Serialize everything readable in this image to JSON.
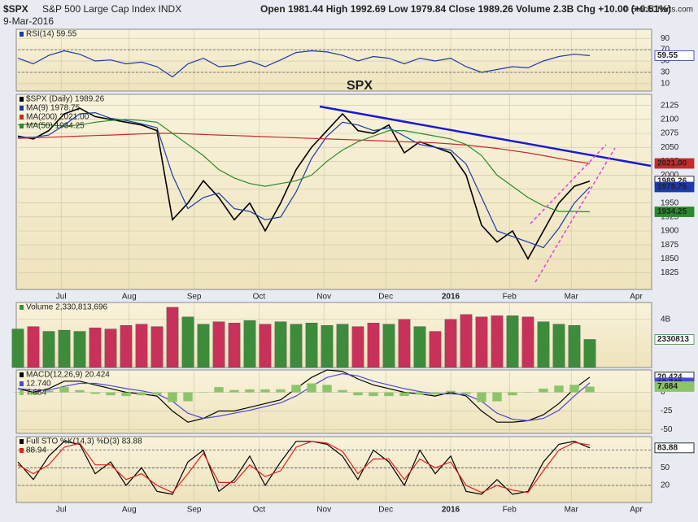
{
  "header": {
    "symbol": "$SPX",
    "name": "S&P 500 Large Cap Index INDX",
    "date": "9-Mar-2016",
    "ohlc": "Open 1981.44  High 1992.69  Low 1979.84  Close 1989.26  Volume 2.3B  Chg +10.00 (+0.51%)",
    "source": "© StockCharts.com"
  },
  "chart_data": [
    {
      "type": "line",
      "ylim": [
        -3,
        106
      ],
      "yticks": [
        10,
        30,
        50,
        70,
        90
      ],
      "levels": [
        30,
        70
      ],
      "x": [
        0,
        5,
        10,
        15,
        20,
        25,
        30,
        35,
        40,
        45,
        50,
        55,
        60,
        65,
        70,
        75,
        80,
        85,
        90,
        95,
        100,
        105,
        110,
        115,
        120,
        125,
        130,
        135,
        140,
        145,
        150,
        155,
        160,
        165,
        170,
        175,
        180,
        185
      ],
      "xlim": [
        0,
        205
      ],
      "series": [
        {
          "name": "RSI(14) 59.55",
          "color": "#1c3aa9",
          "tag": "59.55",
          "values": [
            55,
            45,
            60,
            68,
            62,
            50,
            52,
            45,
            48,
            40,
            22,
            45,
            55,
            40,
            42,
            50,
            40,
            52,
            65,
            68,
            66,
            60,
            50,
            58,
            55,
            45,
            55,
            50,
            55,
            40,
            30,
            35,
            40,
            38,
            50,
            58,
            62,
            59.55
          ]
        }
      ]
    },
    {
      "type": "line",
      "annotation": "SPX",
      "ylim": [
        1795,
        2145
      ],
      "yticks": [
        1825,
        1850,
        1875,
        1900,
        1925,
        1950,
        1975,
        2000,
        2025,
        2050,
        2075,
        2100,
        2125
      ],
      "x": [
        0,
        5,
        10,
        15,
        20,
        25,
        30,
        35,
        40,
        45,
        50,
        55,
        60,
        65,
        70,
        75,
        80,
        85,
        90,
        95,
        100,
        105,
        110,
        115,
        120,
        125,
        130,
        135,
        140,
        145,
        150,
        155,
        160,
        165,
        170,
        175,
        180,
        185
      ],
      "xlim": [
        0,
        205
      ],
      "xticks": [
        {
          "value": 14,
          "label": "Jul"
        },
        {
          "value": 36,
          "label": "Aug"
        },
        {
          "value": 57,
          "label": "Sep"
        },
        {
          "value": 78,
          "label": "Oct"
        },
        {
          "value": 99,
          "label": "Nov"
        },
        {
          "value": 119,
          "label": "Dec"
        },
        {
          "value": 140,
          "label": "2016"
        },
        {
          "value": 159,
          "label": "Feb"
        },
        {
          "value": 179,
          "label": "Mar"
        },
        {
          "value": 200,
          "label": "Apr"
        }
      ],
      "series": [
        {
          "name": "$SPX (Daily) 1989.26",
          "color": "#000000",
          "tag": "1989.26",
          "values": [
            2070,
            2065,
            2080,
            2110,
            2120,
            2105,
            2100,
            2095,
            2090,
            2080,
            1920,
            1950,
            1990,
            1960,
            1920,
            1950,
            1900,
            1950,
            2010,
            2050,
            2080,
            2110,
            2080,
            2075,
            2090,
            2040,
            2060,
            2050,
            2040,
            2000,
            1910,
            1880,
            1900,
            1850,
            1900,
            1950,
            1980,
            1989.26
          ]
        },
        {
          "name": "MA(9) 1978.75",
          "color": "#1c3aa9",
          "tag": "1978.75",
          "values": [
            2068,
            2068,
            2072,
            2090,
            2110,
            2112,
            2102,
            2098,
            2092,
            2085,
            2000,
            1940,
            1960,
            1968,
            1940,
            1935,
            1920,
            1925,
            1970,
            2030,
            2070,
            2095,
            2090,
            2080,
            2085,
            2070,
            2055,
            2050,
            2045,
            2020,
            1960,
            1900,
            1890,
            1880,
            1870,
            1905,
            1950,
            1978.75
          ]
        },
        {
          "name": "MA(200) 2021.00",
          "color": "#c82a2a",
          "tag": "2021.00",
          "values": [
            2066,
            2067,
            2068,
            2069,
            2070,
            2071,
            2072,
            2073,
            2074,
            2075,
            2075,
            2074,
            2073,
            2072,
            2071,
            2070,
            2069,
            2068,
            2067,
            2066,
            2065,
            2064,
            2063,
            2062,
            2061,
            2060,
            2059,
            2058,
            2056,
            2054,
            2051,
            2048,
            2044,
            2040,
            2035,
            2030,
            2025,
            2021
          ]
        },
        {
          "name": "MA(50) 1934.25",
          "color": "#2a8a2a",
          "tag": "1934.25",
          "values": [
            2090,
            2092,
            2090,
            2088,
            2090,
            2095,
            2098,
            2100,
            2098,
            2095,
            2075,
            2055,
            2035,
            2010,
            1995,
            1985,
            1980,
            1985,
            1990,
            2000,
            2025,
            2045,
            2060,
            2070,
            2080,
            2080,
            2075,
            2070,
            2065,
            2055,
            2035,
            2000,
            1980,
            1960,
            1945,
            1935,
            1935,
            1934.25
          ]
        }
      ]
    },
    {
      "type": "bar",
      "ylim": [
        0,
        5.4
      ],
      "yticks": [
        {
          "value": 4,
          "label": "4B"
        }
      ],
      "up_color": "#3c8c3c",
      "down_color": "#c8325a",
      "x": [
        0,
        5,
        10,
        15,
        20,
        25,
        30,
        35,
        40,
        45,
        50,
        55,
        60,
        65,
        70,
        75,
        80,
        85,
        90,
        95,
        100,
        105,
        110,
        115,
        120,
        125,
        130,
        135,
        140,
        145,
        150,
        155,
        160,
        165,
        170,
        175,
        180,
        185
      ],
      "xlim": [
        0,
        205
      ],
      "series": [
        {
          "name": "Volume 2,330,813,696",
          "color": "#3c8c3c",
          "tag": "2330813",
          "values": [
            3.2,
            3.4,
            3.0,
            3.1,
            3.0,
            3.3,
            3.2,
            3.5,
            3.6,
            3.4,
            5.0,
            4.2,
            3.6,
            3.8,
            3.7,
            3.9,
            3.6,
            3.8,
            3.6,
            3.7,
            3.5,
            3.6,
            3.4,
            3.7,
            3.6,
            4.0,
            3.4,
            3.0,
            4.0,
            4.4,
            4.2,
            4.3,
            4.3,
            4.2,
            3.8,
            3.6,
            3.5,
            2.330813696
          ]
        }
      ]
    },
    {
      "type": "line",
      "ylim": [
        -55,
        30
      ],
      "yticks": [
        -50,
        -25,
        0
      ],
      "x": [
        0,
        5,
        10,
        15,
        20,
        25,
        30,
        35,
        40,
        45,
        50,
        55,
        60,
        65,
        70,
        75,
        80,
        85,
        90,
        95,
        100,
        105,
        110,
        115,
        120,
        125,
        130,
        135,
        140,
        145,
        150,
        155,
        160,
        165,
        170,
        175,
        180,
        185
      ],
      "xlim": [
        0,
        205
      ],
      "series": [
        {
          "name": "MACD(12,26,9) 20.424",
          "color": "#000000",
          "tag": "20.424",
          "values": [
            5,
            0,
            5,
            15,
            15,
            10,
            5,
            0,
            -2,
            -5,
            -25,
            -40,
            -35,
            -25,
            -25,
            -20,
            -15,
            -10,
            5,
            20,
            30,
            28,
            18,
            10,
            5,
            0,
            -2,
            -5,
            0,
            -5,
            -25,
            -40,
            -40,
            -38,
            -30,
            -15,
            5,
            20.424
          ]
        },
        {
          "name": "12.740",
          "color": "#4a4ad0",
          "tag": "12.740",
          "values": [
            5,
            3,
            3,
            8,
            12,
            12,
            9,
            5,
            2,
            -2,
            -12,
            -28,
            -35,
            -32,
            -28,
            -24,
            -19,
            -14,
            -5,
            8,
            20,
            25,
            22,
            15,
            10,
            5,
            1,
            -2,
            -2,
            -3,
            -12,
            -28,
            -36,
            -38,
            -35,
            -24,
            -5,
            12.74
          ]
        },
        {
          "name": "7.684",
          "color": "#8cc46a",
          "kind": "bar",
          "tag": "7.684",
          "values": [
            0,
            -3,
            2,
            7,
            3,
            -2,
            -4,
            -5,
            -4,
            -3,
            -13,
            -12,
            0,
            7,
            3,
            4,
            4,
            4,
            10,
            12,
            10,
            3,
            -4,
            -5,
            -5,
            -5,
            -3,
            -3,
            2,
            -2,
            -13,
            -12,
            -4,
            0,
            5,
            9,
            10,
            7.684
          ]
        }
      ]
    },
    {
      "type": "line",
      "ylim": [
        -9,
        103
      ],
      "yticks": [
        20,
        50
      ],
      "levels": [
        20,
        50,
        80
      ],
      "x": [
        0,
        5,
        10,
        15,
        20,
        25,
        30,
        35,
        40,
        45,
        50,
        55,
        60,
        65,
        70,
        75,
        80,
        85,
        90,
        95,
        100,
        105,
        110,
        115,
        120,
        125,
        130,
        135,
        140,
        145,
        150,
        155,
        160,
        165,
        170,
        175,
        180,
        185
      ],
      "xlim": [
        0,
        205
      ],
      "xticks": [
        {
          "value": 14,
          "label": "Jul"
        },
        {
          "value": 36,
          "label": "Aug"
        },
        {
          "value": 57,
          "label": "Sep"
        },
        {
          "value": 78,
          "label": "Oct"
        },
        {
          "value": 99,
          "label": "Nov"
        },
        {
          "value": 119,
          "label": "Dec"
        },
        {
          "value": 140,
          "label": "2016"
        },
        {
          "value": 159,
          "label": "Feb"
        },
        {
          "value": 179,
          "label": "Mar"
        },
        {
          "value": 200,
          "label": "Apr"
        }
      ],
      "series": [
        {
          "name": "Full STO %K(14,3) %D(3) 83.88",
          "color": "#000000",
          "tag": "83.88",
          "values": [
            60,
            30,
            70,
            95,
            90,
            40,
            60,
            20,
            50,
            10,
            5,
            60,
            80,
            10,
            30,
            70,
            20,
            60,
            95,
            95,
            90,
            70,
            30,
            80,
            60,
            20,
            80,
            40,
            70,
            10,
            5,
            30,
            5,
            10,
            60,
            90,
            95,
            83.88
          ]
        },
        {
          "name": "88.94",
          "color": "#e02020",
          "values": [
            55,
            40,
            55,
            85,
            92,
            55,
            55,
            30,
            40,
            20,
            8,
            40,
            75,
            25,
            25,
            55,
            35,
            45,
            85,
            95,
            92,
            78,
            40,
            65,
            65,
            30,
            65,
            50,
            60,
            20,
            8,
            20,
            12,
            8,
            45,
            80,
            93,
            88.94
          ]
        }
      ]
    }
  ]
}
